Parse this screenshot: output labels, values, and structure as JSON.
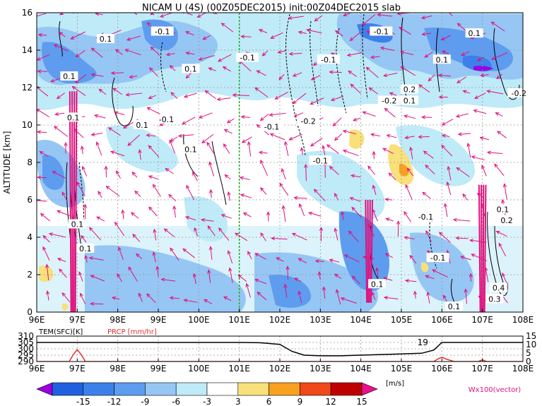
{
  "chart_data": [
    {
      "type": "heatmap",
      "title": "NICAM U (4S) (00Z05DEC2015) init:00Z04DEC2015 slab",
      "xlabel": "",
      "ylabel": "ALTITUDE [km]",
      "x_ticks": [
        "96E",
        "97E",
        "98E",
        "99E",
        "100E",
        "101E",
        "102E",
        "103E",
        "104E",
        "105E",
        "106E",
        "107E",
        "108E"
      ],
      "xlim": [
        96,
        108
      ],
      "y_ticks": [
        "0",
        "2",
        "4",
        "6",
        "8",
        "10",
        "12",
        "14",
        "16"
      ],
      "ylim": [
        0,
        16
      ],
      "grid": true,
      "marker_line": {
        "x": 101,
        "color": "#22aa22"
      },
      "contour_labels": [
        {
          "text": "-0.1",
          "x": 99.1,
          "y": 15.0
        },
        {
          "text": "-0.1",
          "x": 104.5,
          "y": 15.0
        },
        {
          "text": "0.1",
          "x": 106.8,
          "y": 14.9
        },
        {
          "text": "0.1",
          "x": 97.7,
          "y": 14.6
        },
        {
          "text": "-0.1",
          "x": 101.2,
          "y": 13.6
        },
        {
          "text": "-0.1",
          "x": 103.2,
          "y": 13.5
        },
        {
          "text": "0.1",
          "x": 106.0,
          "y": 13.5
        },
        {
          "text": "0.1",
          "x": 99.8,
          "y": 13.0
        },
        {
          "text": "0.1",
          "x": 96.8,
          "y": 12.6
        },
        {
          "text": "0.2",
          "x": 105.2,
          "y": 11.9
        },
        {
          "text": "-0.2",
          "x": 104.7,
          "y": 11.3
        },
        {
          "text": "0.1",
          "x": 105.2,
          "y": 11.3
        },
        {
          "text": "-0.2",
          "x": 107.9,
          "y": 11.7
        },
        {
          "text": "0.1",
          "x": 96.9,
          "y": 10.4
        },
        {
          "text": "-0.2",
          "x": 102.7,
          "y": 10.2
        },
        {
          "text": "0.1",
          "x": 98.6,
          "y": 10.0
        },
        {
          "text": "-0.1",
          "x": 99.2,
          "y": 10.3
        },
        {
          "text": "-0.1",
          "x": 101.8,
          "y": 9.9
        },
        {
          "text": "0.1",
          "x": 99.8,
          "y": 8.7
        },
        {
          "text": "-0.1",
          "x": 103.0,
          "y": 8.1
        },
        {
          "text": "-0.1",
          "x": 105.6,
          "y": 5.1
        },
        {
          "text": "0.1",
          "x": 107.5,
          "y": 5.5
        },
        {
          "text": "0.2",
          "x": 107.6,
          "y": 4.9
        },
        {
          "text": "0.1",
          "x": 97.0,
          "y": 4.7
        },
        {
          "text": "0.1",
          "x": 97.2,
          "y": 3.4
        },
        {
          "text": "-0.1",
          "x": 105.9,
          "y": 2.9
        },
        {
          "text": "0.1",
          "x": 104.4,
          "y": 1.5
        },
        {
          "text": "0.4",
          "x": 107.4,
          "y": 1.3
        },
        {
          "text": "0.3",
          "x": 107.3,
          "y": 0.7
        },
        {
          "text": "0.1",
          "x": 106.3,
          "y": 0.3
        }
      ],
      "wind_jets": [
        {
          "x": 96.9,
          "y0": 0.0,
          "y1": 11.8
        },
        {
          "x": 107.0,
          "y0": 0.0,
          "y1": 6.8
        },
        {
          "x": 104.2,
          "y0": 0.5,
          "y1": 6.0
        }
      ]
    },
    {
      "type": "line",
      "title": "",
      "left_label": "TEM(SFC)[K]",
      "right_label": "PRCP [mm/hr]",
      "x_ticks": [
        "96E",
        "97E",
        "98E",
        "99E",
        "100E",
        "101E",
        "102E",
        "103E",
        "104E",
        "105E",
        "106E",
        "107E",
        "108E"
      ],
      "xlim": [
        96,
        108
      ],
      "y_left_ticks": [
        "290",
        "295",
        "300",
        "305",
        "310"
      ],
      "y_left_lim": [
        290,
        310
      ],
      "y_right_ticks": [
        "0",
        "5",
        "10",
        "15"
      ],
      "y_right_lim": [
        0,
        15
      ],
      "series": [
        {
          "name": "TEM(SFC)[K]",
          "color": "#000000",
          "x": [
            96,
            97,
            98,
            99,
            100,
            101,
            101.5,
            102,
            102.3,
            102.6,
            103,
            103.5,
            104,
            104.5,
            105,
            105.5,
            105.8,
            106,
            106.5,
            107,
            108
          ],
          "y": [
            305,
            305,
            305,
            305,
            305,
            305,
            304.8,
            303.5,
            298,
            295,
            294.5,
            294.5,
            295,
            295.5,
            296,
            296.5,
            299,
            305,
            305,
            305,
            305
          ]
        },
        {
          "name": "PRCP [mm/hr]",
          "color": "#e03030",
          "x": [
            96,
            96.8,
            96.9,
            97.0,
            97.1,
            97.2,
            98,
            101,
            104,
            105.8,
            105.9,
            106.0,
            106.1,
            106.3,
            106.9,
            107.0,
            107.1,
            108
          ],
          "y": [
            0,
            0,
            4,
            7,
            4,
            0,
            0,
            0,
            0,
            0,
            1.5,
            2.5,
            1.5,
            0,
            0,
            1,
            0,
            0
          ]
        }
      ],
      "annotation": {
        "text": "19",
        "x": 105.8,
        "y": 305
      }
    }
  ],
  "colorbar": {
    "unit": "[m/s]",
    "labels": [
      "-15",
      "-12",
      "-9",
      "-6",
      "-3",
      "3",
      "6",
      "9",
      "12",
      "15"
    ],
    "colors": [
      "#9b00e0",
      "#2060e0",
      "#3e80ea",
      "#5e9cf0",
      "#96c6f4",
      "#bfeaf8",
      "#ffffff",
      "#f8e07a",
      "#f8a020",
      "#f04818",
      "#c00000",
      "#e8108c"
    ]
  },
  "vector_label": "Wx100(vector)"
}
